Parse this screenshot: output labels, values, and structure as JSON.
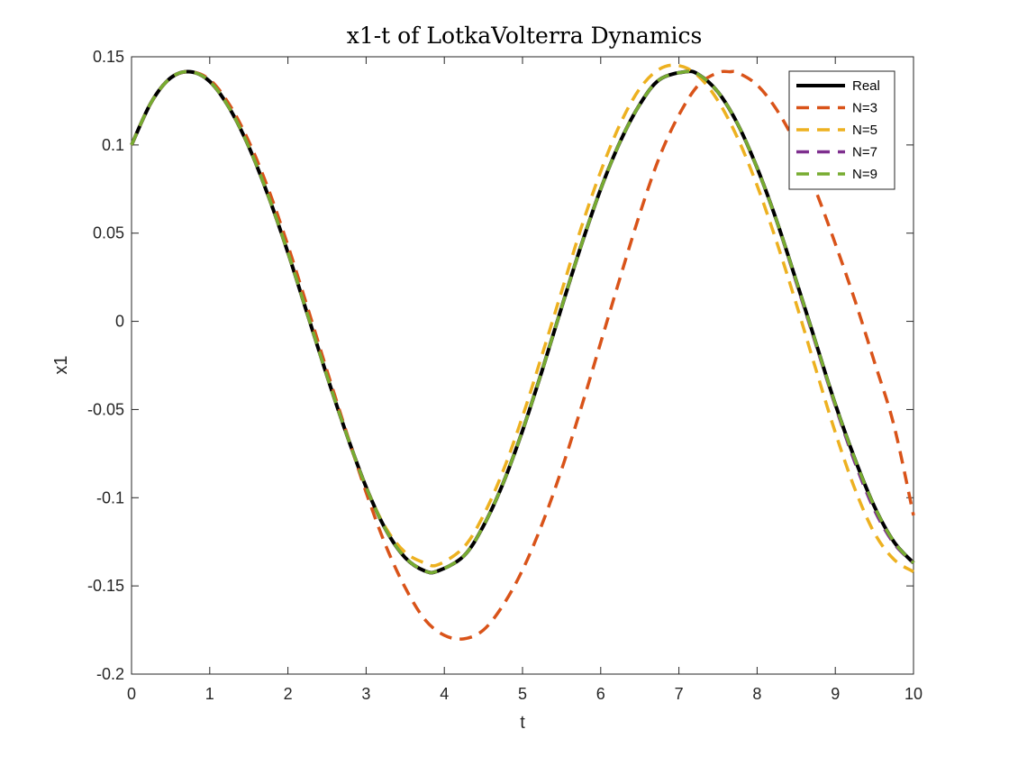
{
  "chart_data": {
    "type": "line",
    "title": "x1-t of LotkaVolterra Dynamics",
    "xlabel": "t",
    "ylabel": "x1",
    "xlim": [
      0,
      10
    ],
    "ylim": [
      -0.2,
      0.15
    ],
    "xticks": [
      0,
      1,
      2,
      3,
      4,
      5,
      6,
      7,
      8,
      9,
      10
    ],
    "xtick_labels": [
      "0",
      "1",
      "2",
      "3",
      "4",
      "5",
      "6",
      "7",
      "8",
      "9",
      "10"
    ],
    "yticks": [
      -0.2,
      -0.15,
      -0.1,
      -0.05,
      0,
      0.05,
      0.1,
      0.15
    ],
    "ytick_labels": [
      "-0.2",
      "-0.15",
      "-0.1",
      "-0.05",
      "0",
      "0.05",
      "0.1",
      "0.15"
    ],
    "grid": false,
    "legend_position": "top-right",
    "series": [
      {
        "name": "Real",
        "color": "#000000",
        "dash": "solid",
        "x": [
          0,
          0.25,
          0.5,
          0.75,
          1,
          1.25,
          1.5,
          1.75,
          2,
          2.25,
          2.5,
          2.75,
          3,
          3.25,
          3.5,
          3.75,
          3.92,
          4.25,
          4.5,
          4.75,
          5,
          5.25,
          5.5,
          5.75,
          6,
          6.25,
          6.5,
          6.75,
          7.08,
          7.25,
          7.5,
          7.75,
          8,
          8.25,
          8.5,
          8.75,
          9,
          9.25,
          9.5,
          9.75,
          10
        ],
        "values": [
          0.1,
          0.124,
          0.138,
          0.1415,
          0.136,
          0.121,
          0.099,
          0.071,
          0.039,
          0.004,
          -0.031,
          -0.064,
          -0.094,
          -0.118,
          -0.134,
          -0.1415,
          -0.1415,
          -0.133,
          -0.116,
          -0.092,
          -0.062,
          -0.028,
          0.008,
          0.043,
          0.075,
          0.102,
          0.123,
          0.137,
          0.1415,
          0.14,
          0.13,
          0.112,
          0.087,
          0.057,
          0.023,
          -0.012,
          -0.047,
          -0.078,
          -0.105,
          -0.125,
          -0.137
        ]
      },
      {
        "name": "N=3",
        "color": "#D95319",
        "dash": "dashed",
        "x": [
          0,
          0.25,
          0.5,
          0.75,
          1,
          1.25,
          1.5,
          1.75,
          2,
          2.25,
          2.5,
          2.75,
          3,
          3.25,
          3.5,
          3.75,
          4,
          4.25,
          4.5,
          4.75,
          5,
          5.25,
          5.5,
          5.75,
          6,
          6.25,
          6.5,
          6.75,
          7,
          7.25,
          7.5,
          7.65,
          7.75,
          8,
          8.25,
          8.5,
          8.75,
          9,
          9.25,
          9.5,
          9.75,
          10
        ],
        "values": [
          0.1,
          0.124,
          0.138,
          0.1415,
          0.137,
          0.123,
          0.102,
          0.075,
          0.043,
          0.008,
          -0.028,
          -0.063,
          -0.097,
          -0.127,
          -0.151,
          -0.169,
          -0.178,
          -0.18,
          -0.175,
          -0.161,
          -0.141,
          -0.115,
          -0.084,
          -0.049,
          -0.012,
          0.025,
          0.061,
          0.093,
          0.117,
          0.134,
          0.141,
          0.1415,
          0.141,
          0.134,
          0.12,
          0.1,
          0.074,
          0.044,
          0.012,
          -0.023,
          -0.059,
          -0.11
        ]
      },
      {
        "name": "N=5",
        "color": "#EDB120",
        "dash": "dashed",
        "x": [
          0,
          0.25,
          0.5,
          0.75,
          1,
          1.25,
          1.5,
          1.75,
          2,
          2.25,
          2.5,
          2.75,
          3,
          3.25,
          3.5,
          3.75,
          3.92,
          4.25,
          4.5,
          4.75,
          5,
          5.25,
          5.5,
          5.75,
          6,
          6.25,
          6.5,
          6.75,
          7.0,
          7.25,
          7.5,
          7.75,
          8,
          8.25,
          8.5,
          8.75,
          9,
          9.25,
          9.5,
          9.75,
          10
        ],
        "values": [
          0.1,
          0.124,
          0.138,
          0.1415,
          0.136,
          0.121,
          0.099,
          0.071,
          0.039,
          0.004,
          -0.031,
          -0.064,
          -0.094,
          -0.117,
          -0.131,
          -0.137,
          -0.138,
          -0.128,
          -0.11,
          -0.085,
          -0.054,
          -0.019,
          0.017,
          0.053,
          0.085,
          0.112,
          0.132,
          0.143,
          0.145,
          0.139,
          0.125,
          0.104,
          0.077,
          0.045,
          0.01,
          -0.027,
          -0.063,
          -0.095,
          -0.12,
          -0.135,
          -0.142
        ]
      },
      {
        "name": "N=7",
        "color": "#7E2F8E",
        "dash": "dashed",
        "x": [
          0,
          0.25,
          0.5,
          0.75,
          1,
          1.25,
          1.5,
          1.75,
          2,
          2.25,
          2.5,
          2.75,
          3,
          3.25,
          3.5,
          3.75,
          3.92,
          4.25,
          4.5,
          4.75,
          5,
          5.25,
          5.5,
          5.75,
          6,
          6.25,
          6.5,
          6.75,
          7.08,
          7.25,
          7.5,
          7.75,
          8,
          8.25,
          8.5,
          8.75,
          9,
          9.25,
          9.5,
          9.75,
          10
        ],
        "values": [
          0.1,
          0.124,
          0.138,
          0.1415,
          0.136,
          0.121,
          0.099,
          0.071,
          0.039,
          0.004,
          -0.031,
          -0.064,
          -0.094,
          -0.118,
          -0.134,
          -0.1415,
          -0.1415,
          -0.133,
          -0.116,
          -0.092,
          -0.062,
          -0.028,
          0.008,
          0.043,
          0.075,
          0.102,
          0.123,
          0.137,
          0.1415,
          0.14,
          0.13,
          0.112,
          0.087,
          0.057,
          0.022,
          -0.013,
          -0.048,
          -0.08,
          -0.107,
          -0.126,
          -0.137
        ]
      },
      {
        "name": "N=9",
        "color": "#77AC30",
        "dash": "dashed",
        "x": [
          0,
          0.25,
          0.5,
          0.75,
          1,
          1.25,
          1.5,
          1.75,
          2,
          2.25,
          2.5,
          2.75,
          3,
          3.25,
          3.5,
          3.75,
          3.92,
          4.25,
          4.5,
          4.75,
          5,
          5.25,
          5.5,
          5.75,
          6,
          6.25,
          6.5,
          6.75,
          7.08,
          7.25,
          7.5,
          7.75,
          8,
          8.25,
          8.5,
          8.75,
          9,
          9.25,
          9.5,
          9.75,
          10
        ],
        "values": [
          0.1,
          0.124,
          0.138,
          0.1415,
          0.136,
          0.121,
          0.099,
          0.071,
          0.039,
          0.004,
          -0.031,
          -0.064,
          -0.094,
          -0.118,
          -0.134,
          -0.1415,
          -0.1415,
          -0.133,
          -0.116,
          -0.092,
          -0.062,
          -0.028,
          0.008,
          0.043,
          0.075,
          0.102,
          0.123,
          0.137,
          0.1415,
          0.14,
          0.13,
          0.112,
          0.087,
          0.057,
          0.023,
          -0.012,
          -0.047,
          -0.078,
          -0.105,
          -0.125,
          -0.137
        ]
      }
    ]
  }
}
